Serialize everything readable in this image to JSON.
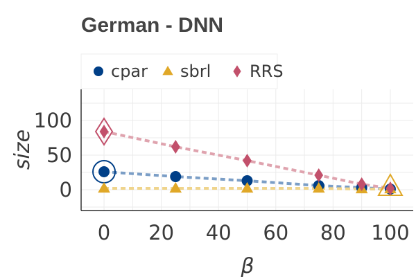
{
  "chart_data": {
    "type": "line",
    "title": "German - DNN",
    "xlabel": "β",
    "ylabel": "size",
    "xlim": [
      -8,
      108
    ],
    "ylim": [
      -30,
      145
    ],
    "x_ticks": [
      0,
      20,
      40,
      60,
      80,
      100
    ],
    "y_ticks": [
      0,
      50,
      100
    ],
    "grid": true,
    "legend_position": "top",
    "series": [
      {
        "name": "cpar",
        "marker": "circle",
        "color": "#003f87",
        "line_color": "#7b9ec6",
        "x": [
          0,
          25,
          50,
          75,
          90,
          100
        ],
        "y": [
          26,
          19,
          13,
          6,
          3,
          1
        ],
        "highlight_x": 0
      },
      {
        "name": "sbrl",
        "marker": "triangle",
        "color": "#e0a828",
        "line_color": "#efd48c",
        "x": [
          0,
          25,
          50,
          75,
          90,
          100
        ],
        "y": [
          2,
          2,
          2,
          2,
          1,
          1
        ],
        "highlight_x": 100
      },
      {
        "name": "RRS",
        "marker": "diamond",
        "color": "#c2506b",
        "line_color": "#dfa3ae",
        "x": [
          0,
          25,
          50,
          75,
          90,
          100
        ],
        "y": [
          84,
          62,
          42,
          21,
          8,
          2
        ],
        "highlight_x": 0
      }
    ]
  }
}
